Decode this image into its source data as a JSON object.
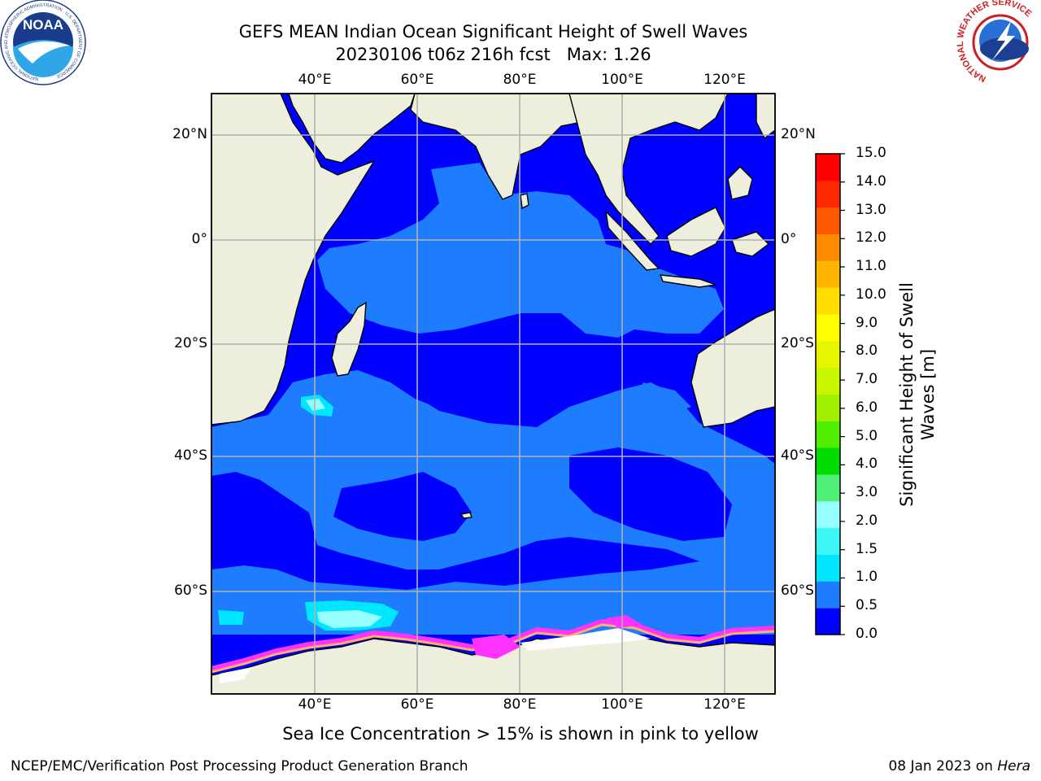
{
  "title": {
    "line1": "GEFS MEAN Indian Ocean Significant Height of Swell Waves",
    "line2": "20230106 t06z 216h fcst   Max: 1.26"
  },
  "map": {
    "lon_ticks": [
      "40°E",
      "60°E",
      "80°E",
      "100°E",
      "120°E"
    ],
    "lat_ticks": [
      "20°N",
      "0°",
      "20°S",
      "40°S",
      "60°S"
    ],
    "land_color": "#eeeedd",
    "ocean_color": "#0000ff",
    "sea_ice_color": "#ff33ff"
  },
  "colorbar": {
    "label": "Significant Height of Swell Waves [m]",
    "levels": [
      "0.0",
      "0.5",
      "1.0",
      "1.5",
      "2.0",
      "3.0",
      "4.0",
      "5.0",
      "6.0",
      "7.0",
      "8.0",
      "9.0",
      "10.0",
      "11.0",
      "12.0",
      "13.0",
      "14.0",
      "15.0"
    ],
    "colors": [
      "#0000ff",
      "#1e7cff",
      "#00e6ff",
      "#3cf5f5",
      "#96ffff",
      "#50f078",
      "#00dc00",
      "#50ef00",
      "#a0f000",
      "#c8f500",
      "#e6f500",
      "#ffff00",
      "#ffdd00",
      "#ffb400",
      "#ff8c00",
      "#ff5a00",
      "#ff2800",
      "#ff0000"
    ]
  },
  "ice_note": "Sea Ice Concentration > 15% is shown in pink to yellow",
  "footer": {
    "left": "NCEP/EMC/Verification Post Processing Product Generation Branch",
    "right_date": "08 Jan 2023 on",
    "right_machine": "Hera"
  },
  "logos": {
    "noaa_text": "NOAA",
    "noaa_ring_text": "NATIONAL OCEANIC AND ATMOSPHERIC ADMINISTRATION · U.S. DEPARTMENT OF COMMERCE",
    "nws_ring_text": "NATIONAL WEATHER SERVICE"
  }
}
